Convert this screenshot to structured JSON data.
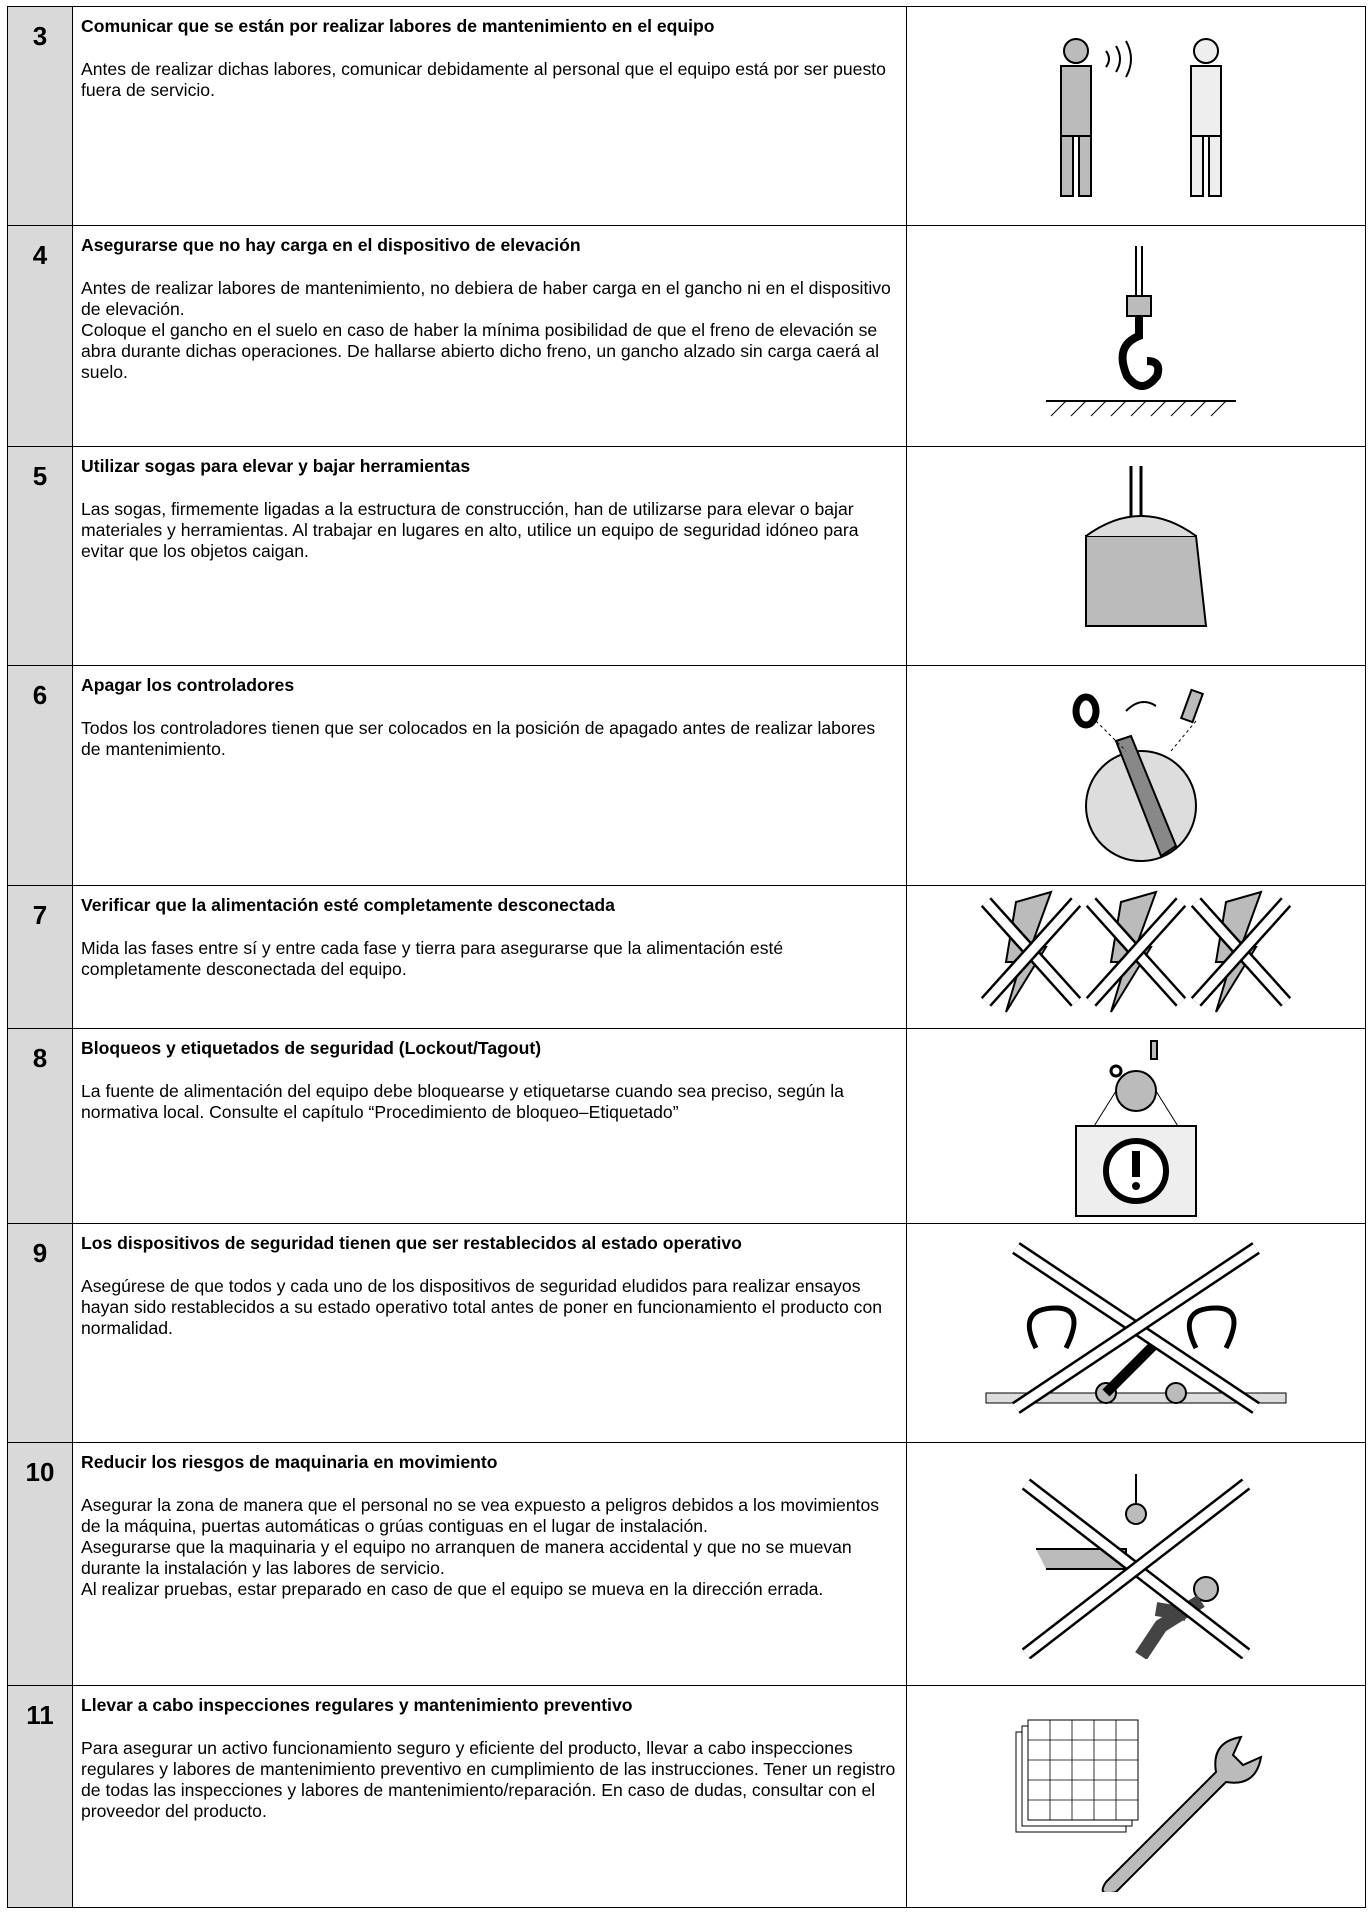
{
  "rows": [
    {
      "number": "3",
      "title": "Comunicar que se están por realizar labores de mantenimiento en el equipo",
      "paragraphs": [
        "Antes de realizar dichas labores, comunicar debidamente al personal que el equipo está por ser puesto fuera de servicio."
      ]
    },
    {
      "number": "4",
      "title": "Asegurarse que no hay carga en el dispositivo de elevación",
      "paragraphs": [
        "Antes de realizar labores de mantenimiento, no debiera de haber carga en el gancho ni en el dispositivo de elevación.",
        "Coloque el gancho en el suelo en caso de haber la mínima posibilidad de que el freno de elevación se abra durante dichas operaciones. De hallarse abierto dicho freno, un gancho alzado sin carga caerá al suelo."
      ]
    },
    {
      "number": "5",
      "title": "Utilizar sogas para elevar y bajar herramientas",
      "paragraphs": [
        "Las sogas, firmemente ligadas a la estructura de construcción, han de utilizarse para elevar o bajar materiales y herramientas. Al trabajar en lugares en alto, utilice un equipo de seguridad idóneo para evitar que los objetos caigan."
      ]
    },
    {
      "number": "6",
      "title": "Apagar los controladores",
      "paragraphs": [
        "Todos los controladores tienen que ser colocados en la posición de apagado antes de realizar labores de mantenimiento."
      ]
    },
    {
      "number": "7",
      "title": "Verificar que la alimentación esté completamente desconectada",
      "paragraphs": [
        "Mida las fases entre sí y entre cada fase y tierra para asegurarse que la alimentación esté completamente desconectada del equipo."
      ]
    },
    {
      "number": "8",
      "title": "Bloqueos y etiquetados de seguridad (Lockout/Tagout)",
      "paragraphs": [
        "La fuente de alimentación del equipo debe bloquearse y etiquetarse cuando sea preciso, según la normativa local. Consulte el capítulo “Procedimiento de bloqueo–Etiquetado”"
      ]
    },
    {
      "number": "9",
      "title": "Los dispositivos de seguridad tienen que ser restablecidos al estado operativo",
      "paragraphs": [
        "Asegúrese de que todos y cada uno de los dispositivos de seguridad eludidos para realizar ensayos hayan sido restablecidos a su estado operativo total antes de poner en funcionamiento el producto con normalidad."
      ]
    },
    {
      "number": "10",
      "title": "Reducir los riesgos de maquinaria en movimiento",
      "paragraphs": [
        "Asegurar la zona de manera que el personal no se vea expuesto a peligros debidos a los movimientos de la máquina, puertas automáticas o grúas contiguas en el lugar de instalación.",
        "Asegurarse que la maquinaria y el equipo no arranquen de manera accidental y que no se muevan durante la instalación y las labores de servicio.",
        "Al realizar pruebas, estar preparado en caso de que el equipo se mueva en la dirección errada."
      ]
    },
    {
      "number": "11",
      "title": "Llevar a cabo inspecciones regulares y mantenimiento preventivo",
      "paragraphs": [
        "Para asegurar un activo funcionamiento seguro y eficiente del producto, llevar a cabo inspecciones regulares y labores de mantenimiento preventivo en cumplimiento de las instrucciones. Tener un registro de todas las inspecciones y labores de mantenimiento/reparación. En caso de dudas, consultar con el proveedor del producto."
      ]
    }
  ]
}
